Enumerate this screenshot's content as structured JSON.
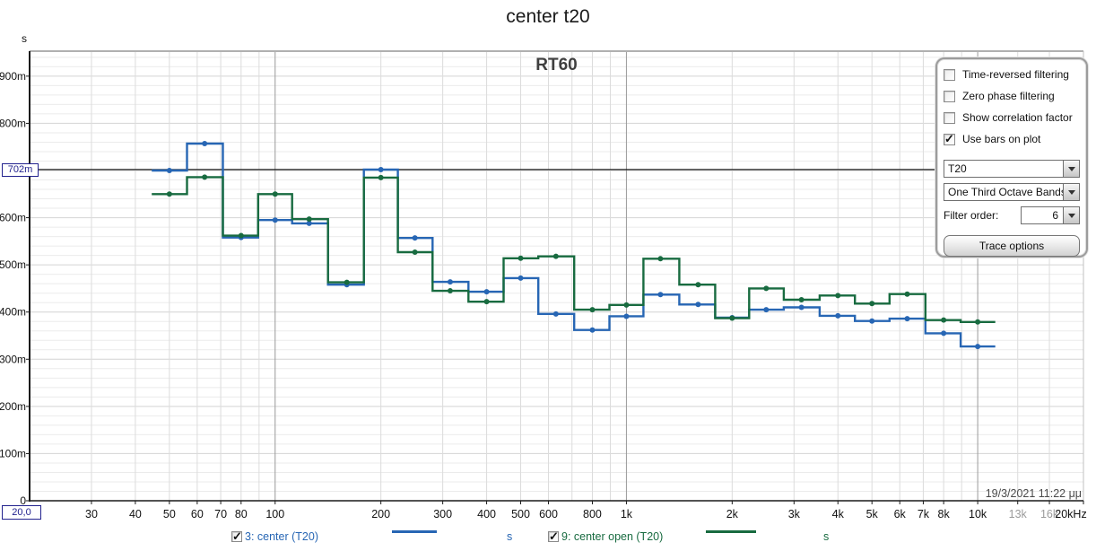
{
  "title": "center t20",
  "plot": {
    "heading": "RT60",
    "y_unit": "s",
    "timestamp": "19/3/2021 11:22 μμ",
    "cursor": {
      "y_label": "702m",
      "x_label": "20,0",
      "y_value_ms": 702,
      "x_value_hz": 20
    }
  },
  "axes": {
    "y_ticks": [
      {
        "label": "900m",
        "ms": 900
      },
      {
        "label": "800m",
        "ms": 800
      },
      {
        "label": "600m",
        "ms": 600
      },
      {
        "label": "500m",
        "ms": 500
      },
      {
        "label": "400m",
        "ms": 400
      },
      {
        "label": "300m",
        "ms": 300
      },
      {
        "label": "200m",
        "ms": 200
      },
      {
        "label": "100m",
        "ms": 100
      },
      {
        "label": "0",
        "ms": 0
      }
    ],
    "x_ticks": [
      {
        "label": "30",
        "hz": 30
      },
      {
        "label": "40",
        "hz": 40
      },
      {
        "label": "50",
        "hz": 50
      },
      {
        "label": "60",
        "hz": 60
      },
      {
        "label": "70",
        "hz": 70
      },
      {
        "label": "80",
        "hz": 80
      },
      {
        "label": "100",
        "hz": 100
      },
      {
        "label": "200",
        "hz": 200
      },
      {
        "label": "300",
        "hz": 300
      },
      {
        "label": "400",
        "hz": 400
      },
      {
        "label": "500",
        "hz": 500
      },
      {
        "label": "600",
        "hz": 600
      },
      {
        "label": "800",
        "hz": 800
      },
      {
        "label": "1k",
        "hz": 1000
      },
      {
        "label": "2k",
        "hz": 2000
      },
      {
        "label": "3k",
        "hz": 3000
      },
      {
        "label": "4k",
        "hz": 4000
      },
      {
        "label": "5k",
        "hz": 5000
      },
      {
        "label": "6k",
        "hz": 6000
      },
      {
        "label": "7k",
        "hz": 7000
      },
      {
        "label": "8k",
        "hz": 8000
      },
      {
        "label": "10k",
        "hz": 10000
      },
      {
        "label": "13k",
        "hz": 13000,
        "muted": true
      },
      {
        "label": "16k",
        "hz": 16000,
        "muted": true
      },
      {
        "label": "20kHz",
        "hz": 20000
      }
    ]
  },
  "chart_data": {
    "type": "line",
    "subtype": "one-third-octave step bars (RT60 T20)",
    "x_unit": "Hz",
    "y_unit": "s",
    "x_scale": "log",
    "xlim_hz": [
      20,
      20000
    ],
    "ylim_ms": [
      0,
      953
    ],
    "grid": "on",
    "cursor_line_ms": 702,
    "frequencies_hz": [
      50,
      63,
      80,
      100,
      125,
      160,
      200,
      250,
      315,
      400,
      500,
      630,
      800,
      1000,
      1250,
      1600,
      2000,
      2500,
      3150,
      4000,
      5000,
      6300,
      8000,
      10000
    ],
    "series": [
      {
        "name": "3: center (T20)",
        "color": "#2766b4",
        "values_ms": [
          700,
          757,
          558,
          595,
          588,
          458,
          702,
          557,
          464,
          443,
          472,
          396,
          362,
          391,
          437,
          416,
          388,
          405,
          410,
          392,
          381,
          386,
          355,
          327
        ]
      },
      {
        "name": "9: center open (T20)",
        "color": "#186b40",
        "values_ms": [
          650,
          686,
          562,
          650,
          597,
          463,
          685,
          527,
          445,
          422,
          514,
          518,
          405,
          415,
          513,
          458,
          387,
          450,
          426,
          435,
          418,
          438,
          383,
          379
        ]
      }
    ],
    "x_gridlines_hz": [
      30,
      40,
      50,
      60,
      70,
      80,
      90,
      100,
      200,
      300,
      400,
      500,
      600,
      700,
      800,
      900,
      1000,
      2000,
      3000,
      4000,
      5000,
      6000,
      7000,
      8000,
      9000,
      10000,
      13000,
      16000
    ],
    "decade_gridlines_hz": [
      100,
      1000,
      10000
    ],
    "y_grid_minor_step_ms": 20,
    "y_grid_major_step_ms": 100
  },
  "panel": {
    "checkboxes": [
      {
        "label": "Time-reversed filtering",
        "checked": false
      },
      {
        "label": "Zero phase filtering",
        "checked": false
      },
      {
        "label": "Show correlation factor",
        "checked": false
      },
      {
        "label": "Use bars on plot",
        "checked": true
      }
    ],
    "dropdowns": [
      {
        "name": "rt60-quantity-dropdown",
        "value": "T20"
      },
      {
        "name": "bands-dropdown",
        "value": "One Third Octave Bands"
      }
    ],
    "filter_order": {
      "label": "Filter order:",
      "value": "6"
    },
    "button_label": "Trace options",
    "check_glyph": "✓"
  },
  "legend": [
    {
      "checked": true,
      "label": "3: center (T20)",
      "unit": "s",
      "color": "#2766b4"
    },
    {
      "checked": true,
      "label": "9: center open (T20)",
      "unit": "s",
      "color": "#186b40"
    }
  ]
}
